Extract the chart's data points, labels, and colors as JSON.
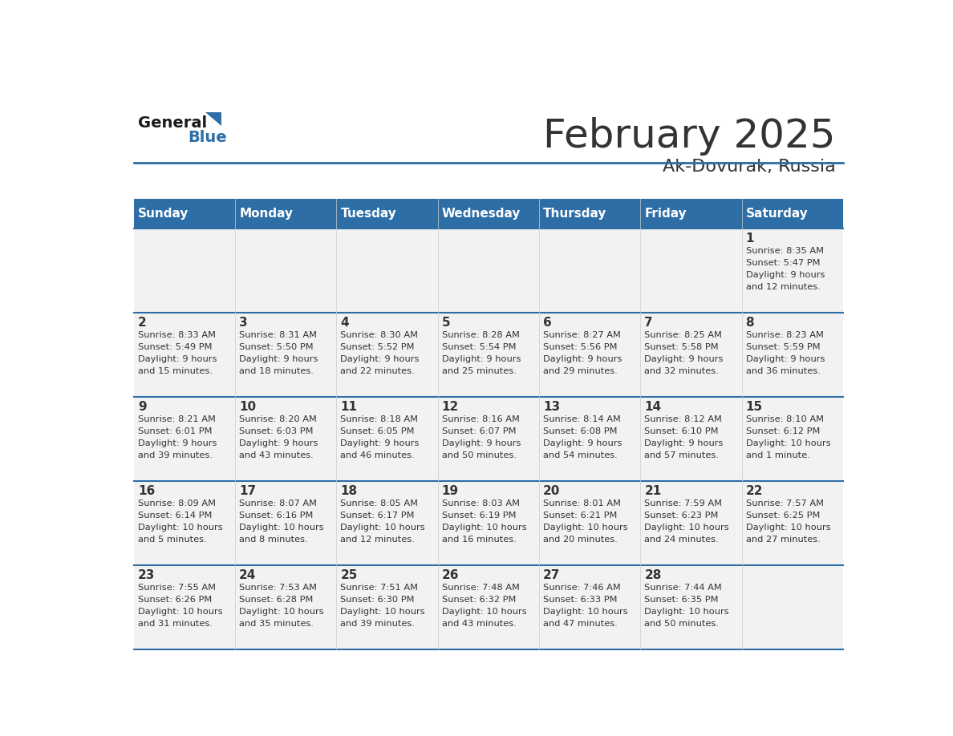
{
  "title": "February 2025",
  "subtitle": "Ak-Dovurak, Russia",
  "header_bg": "#2E6EA6",
  "header_text_color": "#FFFFFF",
  "cell_bg_light": "#F2F2F2",
  "border_color": "#2E6EA6",
  "text_color": "#333333",
  "days_of_week": [
    "Sunday",
    "Monday",
    "Tuesday",
    "Wednesday",
    "Thursday",
    "Friday",
    "Saturday"
  ],
  "calendar_data": [
    [
      {
        "day": null,
        "sunrise": null,
        "sunset": null,
        "daylight": null
      },
      {
        "day": null,
        "sunrise": null,
        "sunset": null,
        "daylight": null
      },
      {
        "day": null,
        "sunrise": null,
        "sunset": null,
        "daylight": null
      },
      {
        "day": null,
        "sunrise": null,
        "sunset": null,
        "daylight": null
      },
      {
        "day": null,
        "sunrise": null,
        "sunset": null,
        "daylight": null
      },
      {
        "day": null,
        "sunrise": null,
        "sunset": null,
        "daylight": null
      },
      {
        "day": 1,
        "sunrise": "8:35 AM",
        "sunset": "5:47 PM",
        "daylight": "9 hours\nand 12 minutes."
      }
    ],
    [
      {
        "day": 2,
        "sunrise": "8:33 AM",
        "sunset": "5:49 PM",
        "daylight": "9 hours\nand 15 minutes."
      },
      {
        "day": 3,
        "sunrise": "8:31 AM",
        "sunset": "5:50 PM",
        "daylight": "9 hours\nand 18 minutes."
      },
      {
        "day": 4,
        "sunrise": "8:30 AM",
        "sunset": "5:52 PM",
        "daylight": "9 hours\nand 22 minutes."
      },
      {
        "day": 5,
        "sunrise": "8:28 AM",
        "sunset": "5:54 PM",
        "daylight": "9 hours\nand 25 minutes."
      },
      {
        "day": 6,
        "sunrise": "8:27 AM",
        "sunset": "5:56 PM",
        "daylight": "9 hours\nand 29 minutes."
      },
      {
        "day": 7,
        "sunrise": "8:25 AM",
        "sunset": "5:58 PM",
        "daylight": "9 hours\nand 32 minutes."
      },
      {
        "day": 8,
        "sunrise": "8:23 AM",
        "sunset": "5:59 PM",
        "daylight": "9 hours\nand 36 minutes."
      }
    ],
    [
      {
        "day": 9,
        "sunrise": "8:21 AM",
        "sunset": "6:01 PM",
        "daylight": "9 hours\nand 39 minutes."
      },
      {
        "day": 10,
        "sunrise": "8:20 AM",
        "sunset": "6:03 PM",
        "daylight": "9 hours\nand 43 minutes."
      },
      {
        "day": 11,
        "sunrise": "8:18 AM",
        "sunset": "6:05 PM",
        "daylight": "9 hours\nand 46 minutes."
      },
      {
        "day": 12,
        "sunrise": "8:16 AM",
        "sunset": "6:07 PM",
        "daylight": "9 hours\nand 50 minutes."
      },
      {
        "day": 13,
        "sunrise": "8:14 AM",
        "sunset": "6:08 PM",
        "daylight": "9 hours\nand 54 minutes."
      },
      {
        "day": 14,
        "sunrise": "8:12 AM",
        "sunset": "6:10 PM",
        "daylight": "9 hours\nand 57 minutes."
      },
      {
        "day": 15,
        "sunrise": "8:10 AM",
        "sunset": "6:12 PM",
        "daylight": "10 hours\nand 1 minute."
      }
    ],
    [
      {
        "day": 16,
        "sunrise": "8:09 AM",
        "sunset": "6:14 PM",
        "daylight": "10 hours\nand 5 minutes."
      },
      {
        "day": 17,
        "sunrise": "8:07 AM",
        "sunset": "6:16 PM",
        "daylight": "10 hours\nand 8 minutes."
      },
      {
        "day": 18,
        "sunrise": "8:05 AM",
        "sunset": "6:17 PM",
        "daylight": "10 hours\nand 12 minutes."
      },
      {
        "day": 19,
        "sunrise": "8:03 AM",
        "sunset": "6:19 PM",
        "daylight": "10 hours\nand 16 minutes."
      },
      {
        "day": 20,
        "sunrise": "8:01 AM",
        "sunset": "6:21 PM",
        "daylight": "10 hours\nand 20 minutes."
      },
      {
        "day": 21,
        "sunrise": "7:59 AM",
        "sunset": "6:23 PM",
        "daylight": "10 hours\nand 24 minutes."
      },
      {
        "day": 22,
        "sunrise": "7:57 AM",
        "sunset": "6:25 PM",
        "daylight": "10 hours\nand 27 minutes."
      }
    ],
    [
      {
        "day": 23,
        "sunrise": "7:55 AM",
        "sunset": "6:26 PM",
        "daylight": "10 hours\nand 31 minutes."
      },
      {
        "day": 24,
        "sunrise": "7:53 AM",
        "sunset": "6:28 PM",
        "daylight": "10 hours\nand 35 minutes."
      },
      {
        "day": 25,
        "sunrise": "7:51 AM",
        "sunset": "6:30 PM",
        "daylight": "10 hours\nand 39 minutes."
      },
      {
        "day": 26,
        "sunrise": "7:48 AM",
        "sunset": "6:32 PM",
        "daylight": "10 hours\nand 43 minutes."
      },
      {
        "day": 27,
        "sunrise": "7:46 AM",
        "sunset": "6:33 PM",
        "daylight": "10 hours\nand 47 minutes."
      },
      {
        "day": 28,
        "sunrise": "7:44 AM",
        "sunset": "6:35 PM",
        "daylight": "10 hours\nand 50 minutes."
      },
      {
        "day": null,
        "sunrise": null,
        "sunset": null,
        "daylight": null
      }
    ]
  ]
}
